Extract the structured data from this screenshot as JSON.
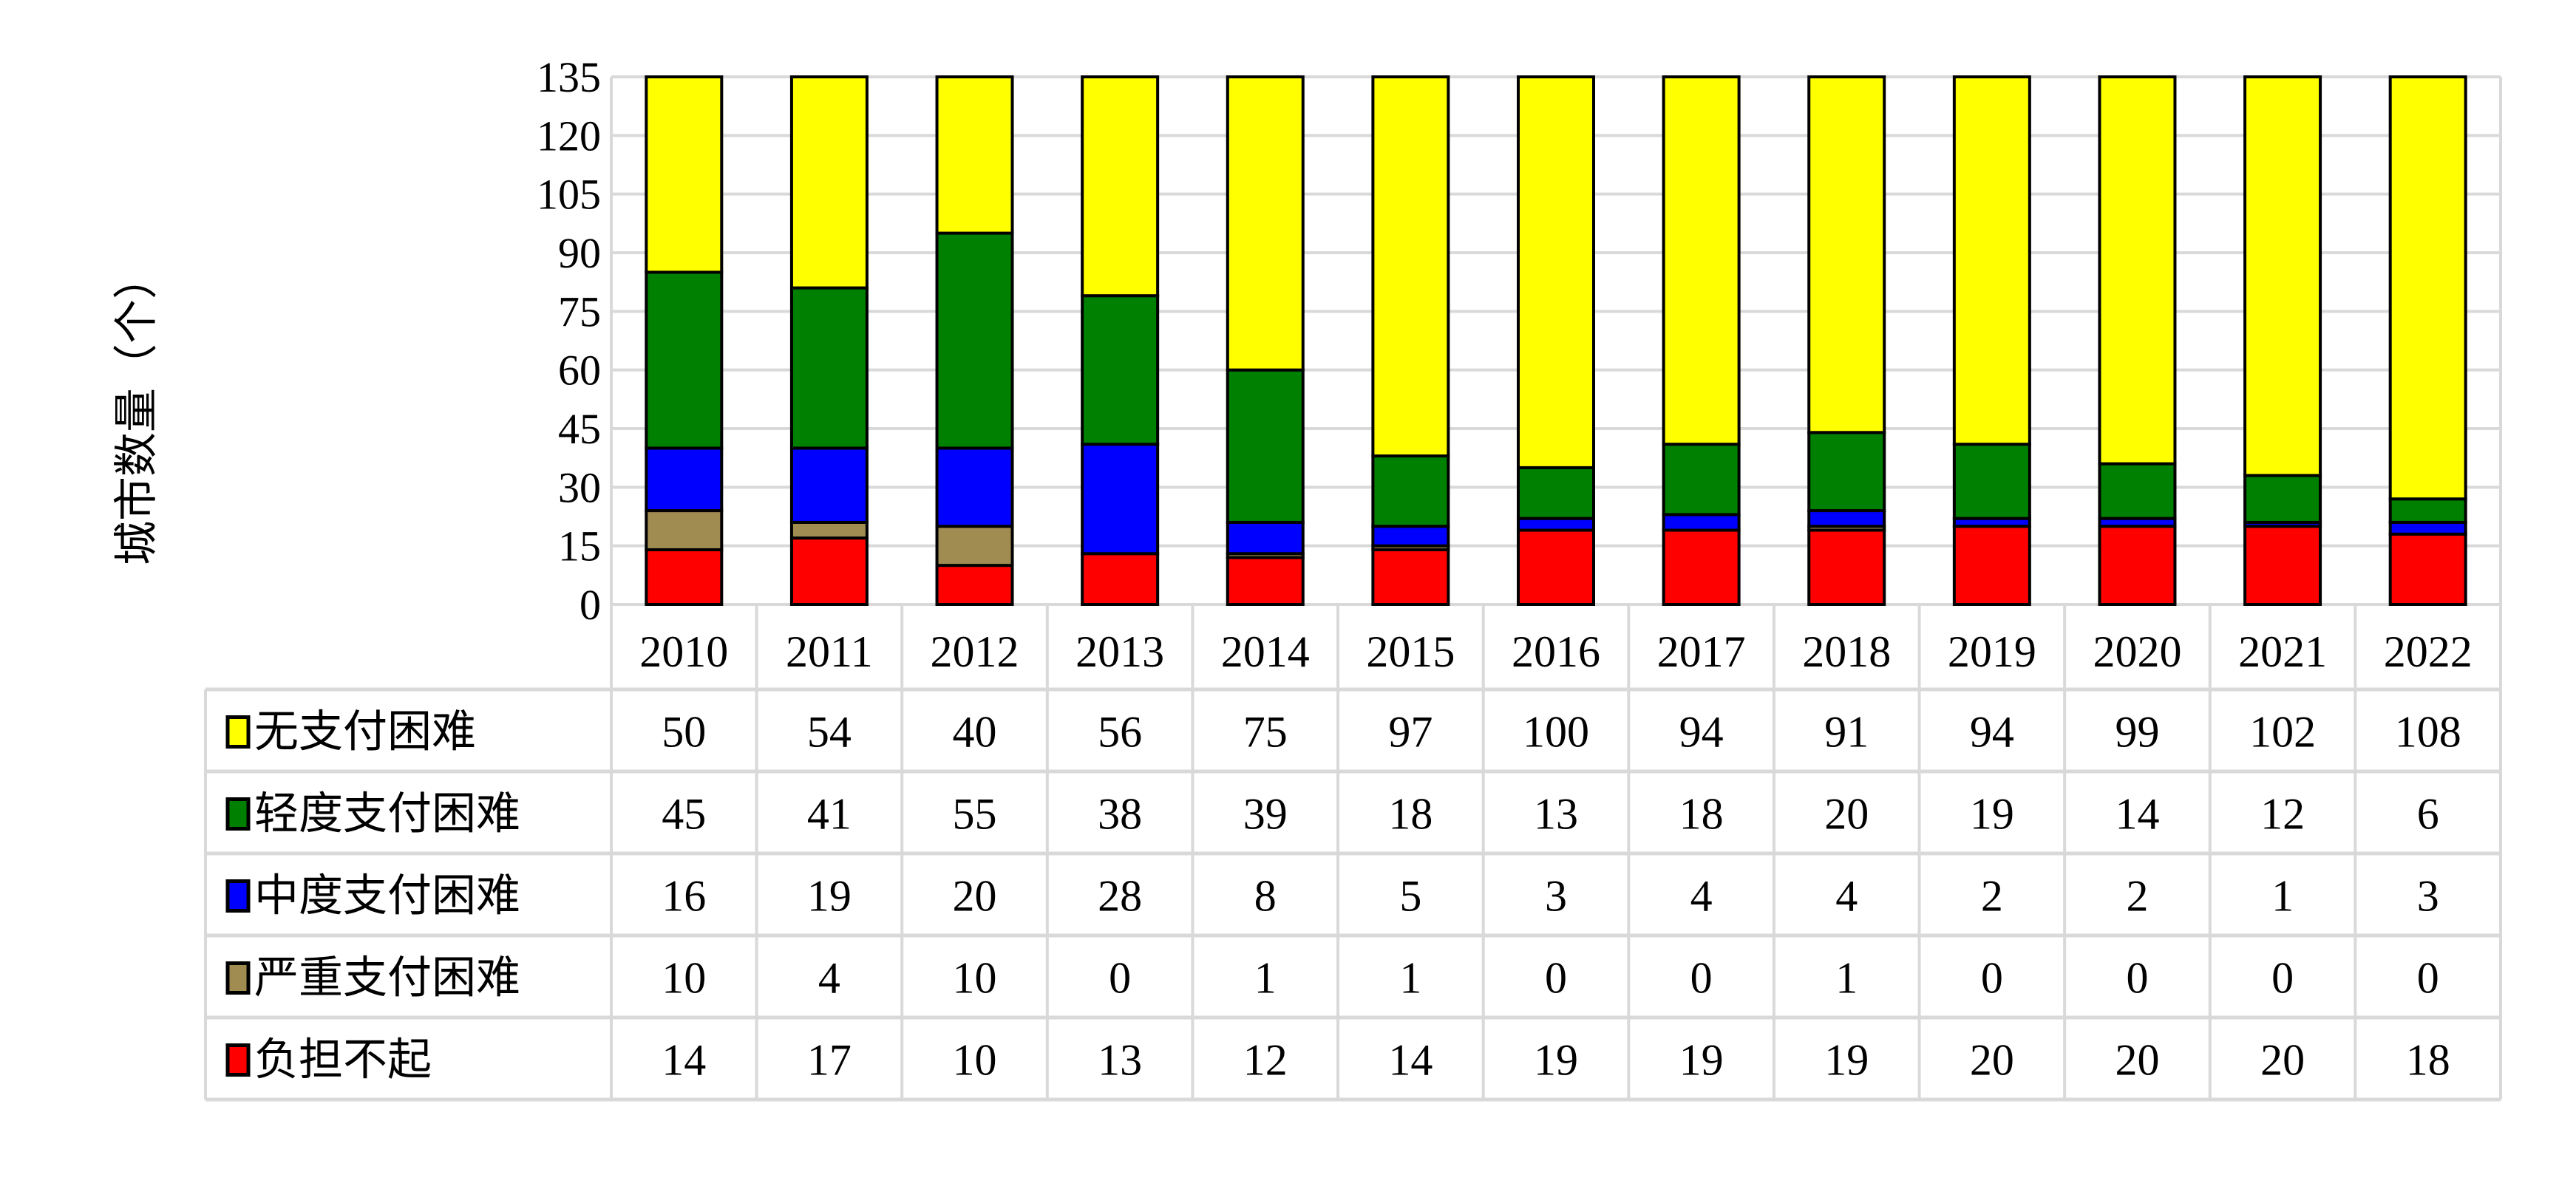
{
  "chart_data": {
    "type": "bar",
    "stacked": true,
    "title": "",
    "xlabel": "",
    "ylabel": "城市数量（个）",
    "ylim": [
      0,
      135
    ],
    "yticks": [
      0,
      15,
      30,
      45,
      60,
      75,
      90,
      105,
      120,
      135
    ],
    "grid": true,
    "legend_placement": "data-table-left",
    "categories": [
      "2010",
      "2011",
      "2012",
      "2013",
      "2014",
      "2015",
      "2016",
      "2017",
      "2018",
      "2019",
      "2020",
      "2021",
      "2022"
    ],
    "series": [
      {
        "name": "负担不起",
        "color": "#FF0000",
        "values": [
          14,
          17,
          10,
          13,
          12,
          14,
          19,
          19,
          19,
          20,
          20,
          20,
          18
        ]
      },
      {
        "name": "严重支付困难",
        "color": "#A08C50",
        "values": [
          10,
          4,
          10,
          0,
          1,
          1,
          0,
          0,
          1,
          0,
          0,
          0,
          0
        ]
      },
      {
        "name": "中度支付困难",
        "color": "#0000FF",
        "values": [
          16,
          19,
          20,
          28,
          8,
          5,
          3,
          4,
          4,
          2,
          2,
          1,
          3
        ]
      },
      {
        "name": "轻度支付困难",
        "color": "#008000",
        "values": [
          45,
          41,
          55,
          38,
          39,
          18,
          13,
          18,
          20,
          19,
          14,
          12,
          6
        ]
      },
      {
        "name": "无支付困难",
        "color": "#FFFF00",
        "values": [
          50,
          54,
          40,
          56,
          75,
          97,
          100,
          94,
          91,
          94,
          99,
          102,
          108
        ]
      }
    ],
    "table_row_order": [
      4,
      3,
      2,
      1,
      0
    ]
  }
}
